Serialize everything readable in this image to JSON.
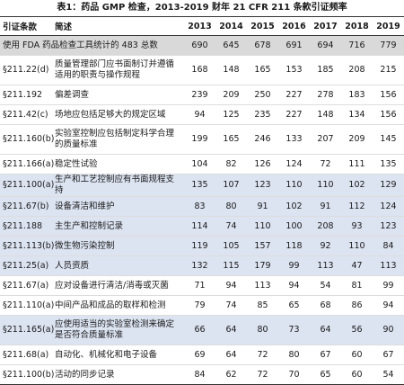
{
  "title": "表1：药品 GMP 检查，2013-2019 财年 21 CFR 211 条款引证频率",
  "table": {
    "header": [
      "引证条款",
      "简述",
      "2013",
      "2014",
      "2015",
      "2016",
      "2017",
      "2018",
      "2019"
    ],
    "rows": [
      [
        "使用 FDA 药品检查工具统计的 483 总数",
        690,
        645,
        678,
        691,
        694,
        716,
        779
      ],
      [
        "§211.22(d)",
        "质量管理部门应书面制订并遵循适用的职责与操作规程",
        168,
        148,
        165,
        153,
        185,
        208,
        215
      ],
      [
        "§211.192",
        "偏差调查",
        239,
        209,
        250,
        227,
        278,
        183,
        156
      ],
      [
        "§211.42(c)",
        "场地应包括足够大的规定区域",
        94,
        125,
        235,
        227,
        148,
        134,
        156
      ],
      [
        "§211.160(b)",
        "实验室控制应包括制定科学合理的质量标准",
        199,
        165,
        246,
        133,
        207,
        209,
        145
      ],
      [
        "§211.166(a)",
        "稳定性试验",
        104,
        82,
        126,
        124,
        72,
        111,
        135
      ],
      [
        "§211.100(a)",
        "生产和工艺控制应有书面规程支持",
        135,
        107,
        123,
        110,
        110,
        102,
        129
      ],
      [
        "§211.67(b)",
        "设备清洁和维护",
        83,
        80,
        91,
        102,
        91,
        112,
        124
      ],
      [
        "§211.188",
        "主生产和控制记录",
        114,
        74,
        110,
        100,
        208,
        93,
        123
      ],
      [
        "§211.113(b)",
        "微生物污染控制",
        119,
        105,
        157,
        118,
        92,
        110,
        84
      ],
      [
        "§211.25(a)",
        "人员资质",
        132,
        115,
        179,
        99,
        113,
        47,
        113
      ],
      [
        "§211.67(a)",
        "应对设备进行清洁/消毒或灭菌",
        71,
        94,
        113,
        94,
        54,
        81,
        99
      ],
      [
        "§211.110(a)",
        "中间产品和成品的取样和检测",
        79,
        74,
        85,
        65,
        68,
        86,
        94
      ],
      [
        "§211.165(a)",
        "应使用适当的实验室检测来确定是否符合质量标准",
        66,
        64,
        80,
        73,
        64,
        56,
        90
      ],
      [
        "§211.68(a)",
        "自动化、机械化和电子设备",
        69,
        64,
        72,
        80,
        67,
        60,
        67
      ],
      [
        "§211.100(b)",
        "活动的同步记录",
        84,
        62,
        72,
        70,
        65,
        60,
        54
      ]
    ]
  }
}
